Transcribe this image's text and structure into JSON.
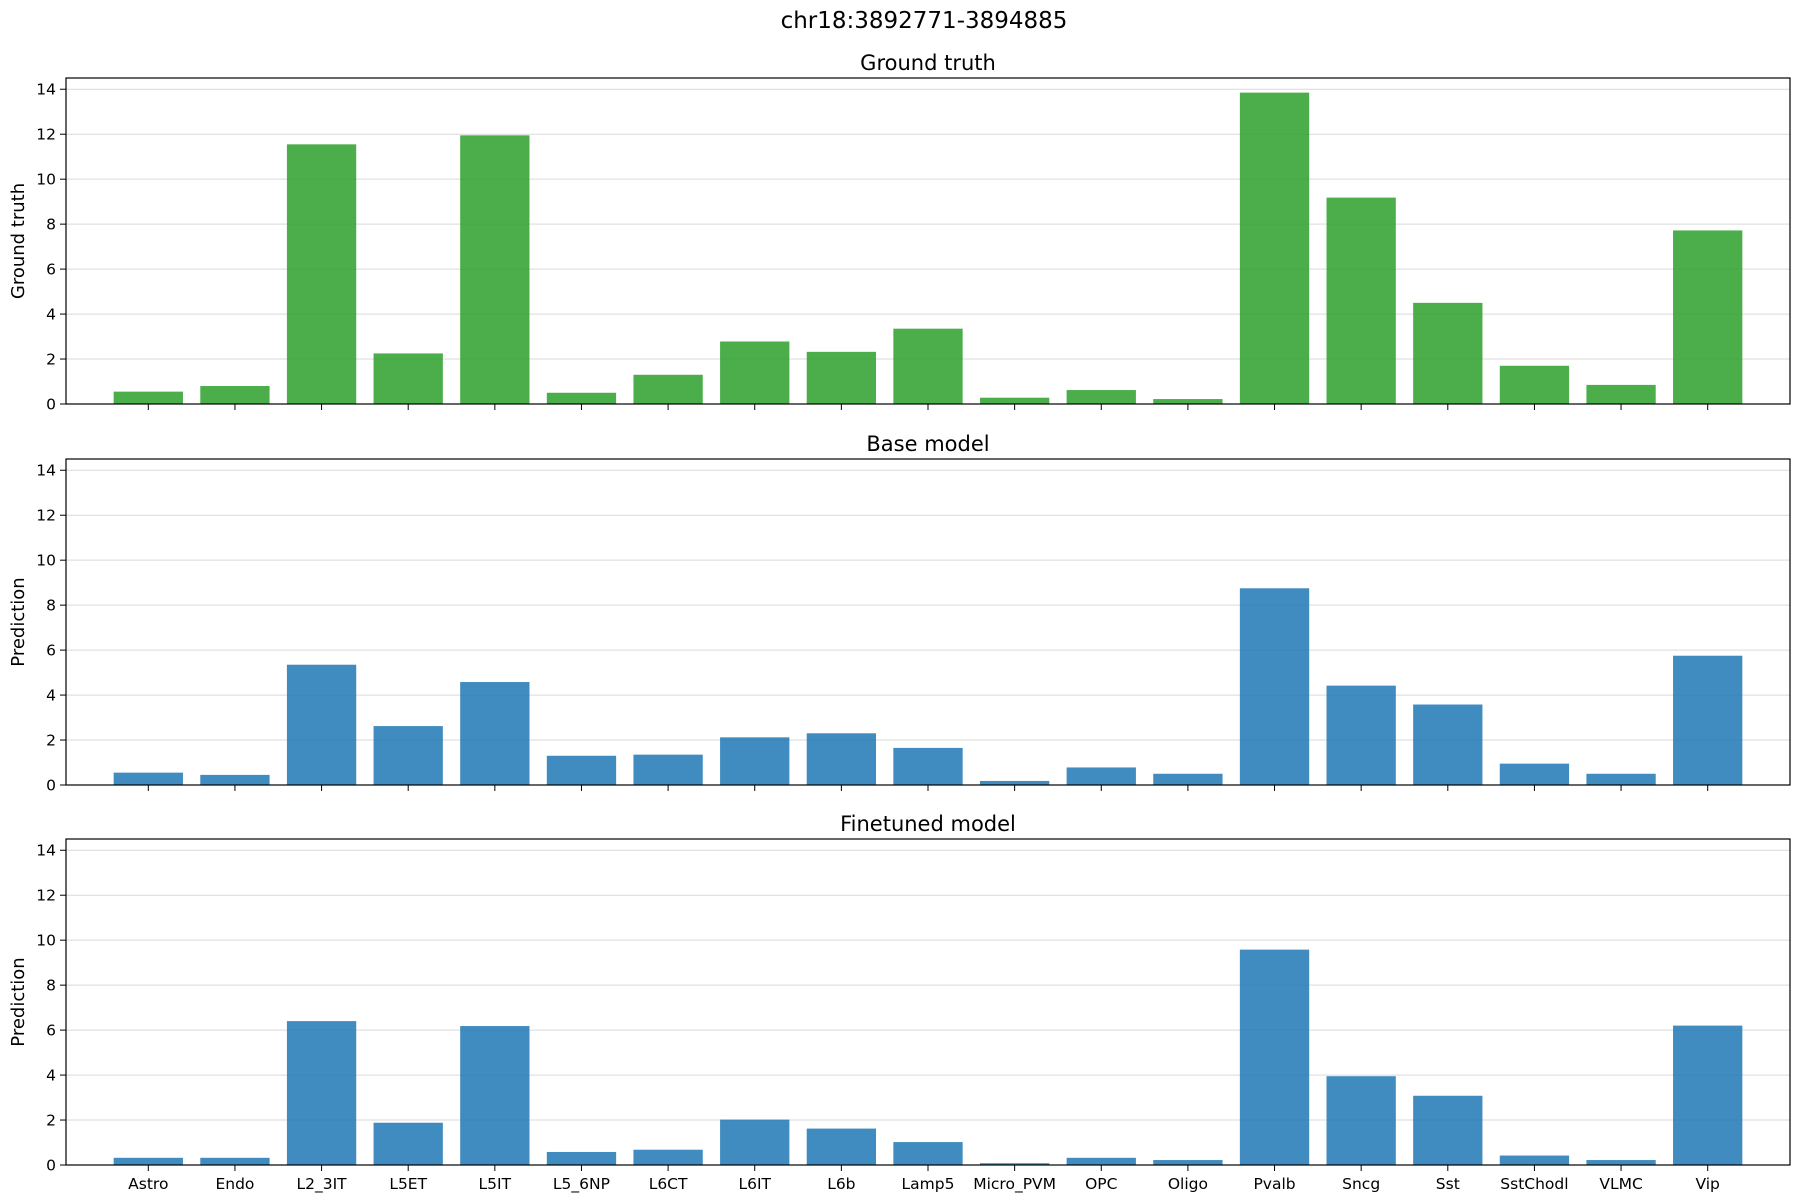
{
  "figure": {
    "title": "chr18:3892771-3894885"
  },
  "chart_data": [
    {
      "type": "bar",
      "title": "Ground truth",
      "xlabel": "",
      "ylabel": "Ground truth",
      "ylim": [
        0,
        14.5
      ],
      "yticks": [
        0,
        2,
        4,
        6,
        8,
        10,
        12,
        14
      ],
      "grid": "y",
      "show_xtick_labels": false,
      "color": "#2ca02c",
      "categories": [
        "Astro",
        "Endo",
        "L2_3IT",
        "L5ET",
        "L5IT",
        "L5_6NP",
        "L6CT",
        "L6IT",
        "L6b",
        "Lamp5",
        "Micro_PVM",
        "OPC",
        "Oligo",
        "Pvalb",
        "Sncg",
        "Sst",
        "SstChodl",
        "VLMC",
        "Vip"
      ],
      "values": [
        0.55,
        0.8,
        11.55,
        2.25,
        11.95,
        0.5,
        1.3,
        2.78,
        2.32,
        3.35,
        0.28,
        0.62,
        0.22,
        13.85,
        9.18,
        4.5,
        1.7,
        0.85,
        7.72
      ]
    },
    {
      "type": "bar",
      "title": "Base model",
      "xlabel": "",
      "ylabel": "Prediction",
      "ylim": [
        0,
        14.5
      ],
      "yticks": [
        0,
        2,
        4,
        6,
        8,
        10,
        12,
        14
      ],
      "grid": "y",
      "show_xtick_labels": false,
      "color": "#1f77b4",
      "categories": [
        "Astro",
        "Endo",
        "L2_3IT",
        "L5ET",
        "L5IT",
        "L5_6NP",
        "L6CT",
        "L6IT",
        "L6b",
        "Lamp5",
        "Micro_PVM",
        "OPC",
        "Oligo",
        "Pvalb",
        "Sncg",
        "Sst",
        "SstChodl",
        "VLMC",
        "Vip"
      ],
      "values": [
        0.55,
        0.45,
        5.35,
        2.62,
        4.58,
        1.3,
        1.35,
        2.12,
        2.3,
        1.65,
        0.18,
        0.78,
        0.5,
        8.75,
        4.42,
        3.58,
        0.95,
        0.5,
        5.75
      ]
    },
    {
      "type": "bar",
      "title": "Finetuned model",
      "xlabel": "",
      "ylabel": "Prediction",
      "ylim": [
        0,
        14.5
      ],
      "yticks": [
        0,
        2,
        4,
        6,
        8,
        10,
        12,
        14
      ],
      "grid": "y",
      "show_xtick_labels": true,
      "color": "#1f77b4",
      "categories": [
        "Astro",
        "Endo",
        "L2_3IT",
        "L5ET",
        "L5IT",
        "L5_6NP",
        "L6CT",
        "L6IT",
        "L6b",
        "Lamp5",
        "Micro_PVM",
        "OPC",
        "Oligo",
        "Pvalb",
        "Sncg",
        "Sst",
        "SstChodl",
        "VLMC",
        "Vip"
      ],
      "values": [
        0.32,
        0.32,
        6.4,
        1.88,
        6.18,
        0.58,
        0.68,
        2.02,
        1.62,
        1.02,
        0.08,
        0.32,
        0.22,
        9.58,
        3.95,
        3.08,
        0.42,
        0.22,
        6.2
      ]
    }
  ]
}
